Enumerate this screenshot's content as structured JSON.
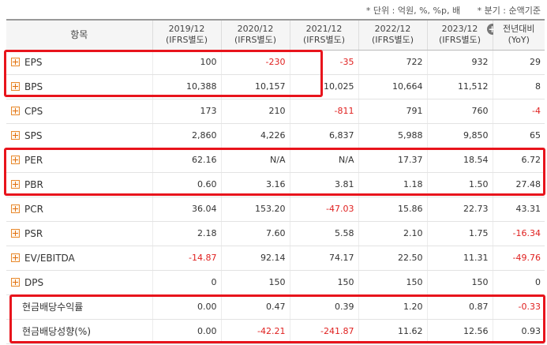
{
  "notes": {
    "unit": "* 단위 : 억원, %, %p, 배",
    "period": "* 분기 : 순액기준"
  },
  "headers": [
    {
      "line1": "항목",
      "line2": ""
    },
    {
      "line1": "2019/12",
      "line2": "(IFRS별도)"
    },
    {
      "line1": "2020/12",
      "line2": "(IFRS별도)"
    },
    {
      "line1": "2021/12",
      "line2": "(IFRS별도)"
    },
    {
      "line1": "2022/12",
      "line2": "(IFRS별도)"
    },
    {
      "line1": "2023/12",
      "line2": "(IFRS별도)"
    },
    {
      "line1": "전년대비",
      "line2": "(YoY)"
    }
  ],
  "rows": [
    {
      "label": "EPS",
      "expand": true,
      "values": [
        "100",
        "-230",
        "-35",
        "722",
        "932",
        "29"
      ]
    },
    {
      "label": "BPS",
      "expand": true,
      "values": [
        "10,388",
        "10,157",
        "10,025",
        "10,664",
        "11,512",
        "8"
      ]
    },
    {
      "label": "CPS",
      "expand": true,
      "values": [
        "173",
        "210",
        "-811",
        "791",
        "760",
        "-4"
      ]
    },
    {
      "label": "SPS",
      "expand": true,
      "values": [
        "2,860",
        "4,226",
        "6,837",
        "5,988",
        "9,850",
        "65"
      ]
    },
    {
      "label": "PER",
      "expand": true,
      "values": [
        "62.16",
        "N/A",
        "N/A",
        "17.37",
        "18.54",
        "6.72"
      ]
    },
    {
      "label": "PBR",
      "expand": true,
      "values": [
        "0.60",
        "3.16",
        "3.81",
        "1.18",
        "1.50",
        "27.48"
      ]
    },
    {
      "label": "PCR",
      "expand": true,
      "values": [
        "36.04",
        "153.20",
        "-47.03",
        "15.86",
        "22.73",
        "43.31"
      ]
    },
    {
      "label": "PSR",
      "expand": true,
      "values": [
        "2.18",
        "7.60",
        "5.58",
        "2.10",
        "1.75",
        "-16.34"
      ]
    },
    {
      "label": "EV/EBITDA",
      "expand": true,
      "values": [
        "-14.87",
        "92.14",
        "74.17",
        "22.50",
        "11.31",
        "-49.76"
      ]
    },
    {
      "label": "DPS",
      "expand": true,
      "values": [
        "0",
        "150",
        "150",
        "150",
        "150",
        "0"
      ]
    },
    {
      "label": "현금배당수익률",
      "expand": false,
      "values": [
        "0.00",
        "0.47",
        "0.39",
        "1.20",
        "0.87",
        "-0.33"
      ]
    },
    {
      "label": "현금배당성향(%)",
      "expand": false,
      "values": [
        "0.00",
        "-42.21",
        "-241.87",
        "11.62",
        "12.56",
        "0.93"
      ]
    }
  ],
  "colors": {
    "highlight": "#e8141c",
    "negative": "#e0201f",
    "expand_icon": "#e88a2e"
  }
}
